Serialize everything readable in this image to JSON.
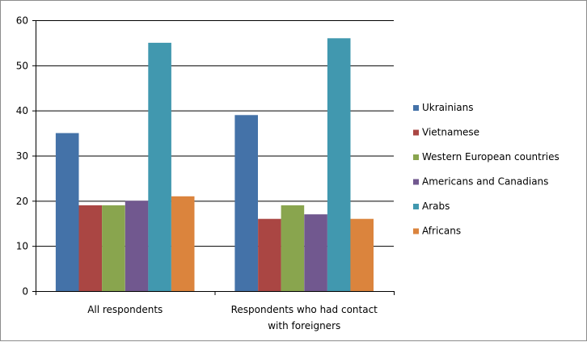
{
  "chart_data": {
    "type": "bar",
    "title": "",
    "xlabel": "",
    "ylabel": "",
    "ylim": [
      0,
      60
    ],
    "yticks": [
      0,
      10,
      20,
      30,
      40,
      50,
      60
    ],
    "grid": true,
    "legend_position": "right",
    "categories": [
      [
        "All respondents"
      ],
      [
        "Respondents who had contact",
        "with foreigners"
      ]
    ],
    "series": [
      {
        "name": "Ukrainians",
        "color": "#4472A8",
        "values": [
          35,
          39
        ]
      },
      {
        "name": "Vietnamese",
        "color": "#AA4643",
        "values": [
          19,
          16
        ]
      },
      {
        "name": "Western European countries",
        "color": "#89A54E",
        "values": [
          19,
          19
        ]
      },
      {
        "name": "Americans and Canadians",
        "color": "#71588F",
        "values": [
          20,
          17
        ]
      },
      {
        "name": "Arabs",
        "color": "#4198AF",
        "values": [
          55,
          56
        ]
      },
      {
        "name": "Africans",
        "color": "#DB843D",
        "values": [
          21,
          16
        ]
      }
    ]
  }
}
